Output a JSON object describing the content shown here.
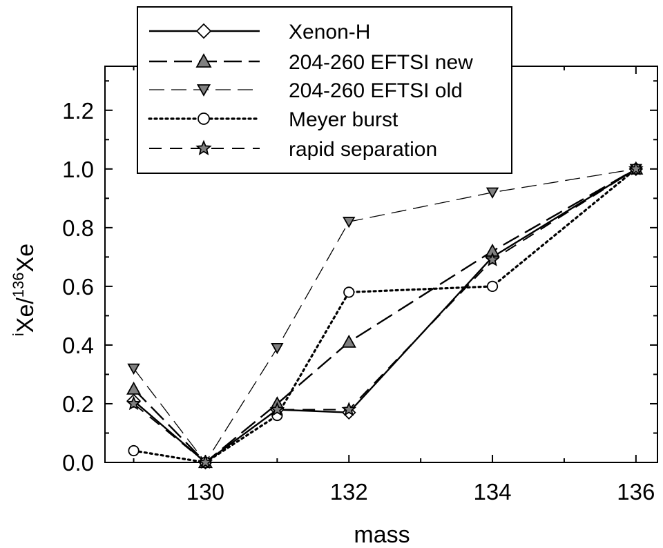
{
  "chart_data": {
    "type": "line",
    "title": "",
    "xlabel": "mass",
    "ylabel": {
      "pre_sup": "i",
      "base1": "Xe/",
      "mid_sup": "136",
      "base2": "Xe"
    },
    "xlim": [
      128.6,
      136.3
    ],
    "ylim": [
      0.0,
      1.35
    ],
    "x_ticks": [
      130,
      132,
      134,
      136
    ],
    "x_tick_labels": [
      "130",
      "132",
      "134",
      "136"
    ],
    "y_ticks": [
      0.0,
      0.2,
      0.4,
      0.6,
      0.8,
      1.0,
      1.2
    ],
    "y_tick_labels": [
      "0.0",
      "0.2",
      "0.4",
      "0.6",
      "0.8",
      "1.0",
      "1.2"
    ],
    "grid": false,
    "legend_position": "top-left",
    "series": [
      {
        "name": "Xenon-H",
        "style": "solid",
        "marker": "diamond",
        "marker_fill": "#ffffff",
        "x": [
          129,
          130,
          131,
          132,
          134,
          136
        ],
        "y": [
          0.21,
          0.0,
          0.18,
          0.17,
          0.7,
          1.0
        ]
      },
      {
        "name": "204-260 EFTSI new",
        "style": "long-dash",
        "marker": "triangle-up",
        "marker_fill": "#808080",
        "x": [
          129,
          130,
          131,
          132,
          134,
          136
        ],
        "y": [
          0.25,
          0.0,
          0.2,
          0.41,
          0.72,
          1.0
        ]
      },
      {
        "name": "204-260 EFTSI old",
        "style": "thin-dash",
        "marker": "triangle-down",
        "marker_fill": "#808080",
        "x": [
          129,
          130,
          131,
          132,
          134,
          136
        ],
        "y": [
          0.32,
          0.0,
          0.39,
          0.82,
          0.92,
          1.0
        ]
      },
      {
        "name": "Meyer burst",
        "style": "dotted",
        "marker": "circle",
        "marker_fill": "#ffffff",
        "x": [
          129,
          130,
          131,
          132,
          134,
          136
        ],
        "y": [
          0.04,
          0.0,
          0.16,
          0.58,
          0.6,
          1.0
        ]
      },
      {
        "name": "rapid separation",
        "style": "mid-dash",
        "marker": "star",
        "marker_fill": "#808080",
        "x": [
          129,
          130,
          131,
          132,
          134,
          136
        ],
        "y": [
          0.2,
          0.0,
          0.18,
          0.18,
          0.69,
          1.0
        ]
      }
    ]
  }
}
